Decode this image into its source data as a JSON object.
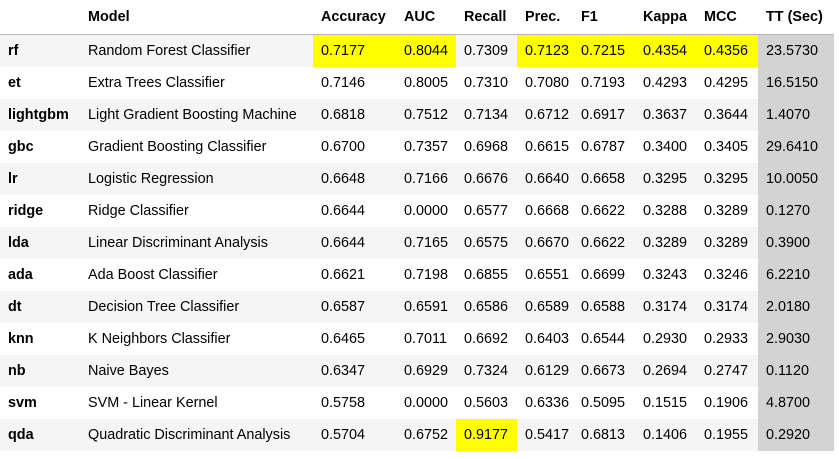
{
  "headers": [
    "",
    "Model",
    "Accuracy",
    "AUC",
    "Recall",
    "Prec.",
    "F1",
    "Kappa",
    "MCC",
    "TT (Sec)"
  ],
  "highlight_color": "#ffff00",
  "time_column_color": "#d3d3d3",
  "rows": [
    {
      "id": "rf",
      "model": "Random Forest Classifier",
      "values": [
        "0.7177",
        "0.8044",
        "0.7309",
        "0.7123",
        "0.7215",
        "0.4354",
        "0.4356",
        "23.5730"
      ],
      "highlight": [
        0,
        1,
        3,
        4,
        5,
        6
      ]
    },
    {
      "id": "et",
      "model": "Extra Trees Classifier",
      "values": [
        "0.7146",
        "0.8005",
        "0.7310",
        "0.7080",
        "0.7193",
        "0.4293",
        "0.4295",
        "16.5150"
      ],
      "highlight": []
    },
    {
      "id": "lightgbm",
      "model": "Light Gradient Boosting Machine",
      "values": [
        "0.6818",
        "0.7512",
        "0.7134",
        "0.6712",
        "0.6917",
        "0.3637",
        "0.3644",
        "1.4070"
      ],
      "highlight": []
    },
    {
      "id": "gbc",
      "model": "Gradient Boosting Classifier",
      "values": [
        "0.6700",
        "0.7357",
        "0.6968",
        "0.6615",
        "0.6787",
        "0.3400",
        "0.3405",
        "29.6410"
      ],
      "highlight": []
    },
    {
      "id": "lr",
      "model": "Logistic Regression",
      "values": [
        "0.6648",
        "0.7166",
        "0.6676",
        "0.6640",
        "0.6658",
        "0.3295",
        "0.3295",
        "10.0050"
      ],
      "highlight": []
    },
    {
      "id": "ridge",
      "model": "Ridge Classifier",
      "values": [
        "0.6644",
        "0.0000",
        "0.6577",
        "0.6668",
        "0.6622",
        "0.3288",
        "0.3289",
        "0.1270"
      ],
      "highlight": []
    },
    {
      "id": "lda",
      "model": "Linear Discriminant Analysis",
      "values": [
        "0.6644",
        "0.7165",
        "0.6575",
        "0.6670",
        "0.6622",
        "0.3289",
        "0.3289",
        "0.3900"
      ],
      "highlight": []
    },
    {
      "id": "ada",
      "model": "Ada Boost Classifier",
      "values": [
        "0.6621",
        "0.7198",
        "0.6855",
        "0.6551",
        "0.6699",
        "0.3243",
        "0.3246",
        "6.2210"
      ],
      "highlight": []
    },
    {
      "id": "dt",
      "model": "Decision Tree Classifier",
      "values": [
        "0.6587",
        "0.6591",
        "0.6586",
        "0.6589",
        "0.6588",
        "0.3174",
        "0.3174",
        "2.0180"
      ],
      "highlight": []
    },
    {
      "id": "knn",
      "model": "K Neighbors Classifier",
      "values": [
        "0.6465",
        "0.7011",
        "0.6692",
        "0.6403",
        "0.6544",
        "0.2930",
        "0.2933",
        "2.9030"
      ],
      "highlight": []
    },
    {
      "id": "nb",
      "model": "Naive Bayes",
      "values": [
        "0.6347",
        "0.6929",
        "0.7324",
        "0.6129",
        "0.6673",
        "0.2694",
        "0.2747",
        "0.1120"
      ],
      "highlight": []
    },
    {
      "id": "svm",
      "model": "SVM - Linear Kernel",
      "values": [
        "0.5758",
        "0.0000",
        "0.5603",
        "0.6336",
        "0.5095",
        "0.1515",
        "0.1906",
        "4.8700"
      ],
      "highlight": []
    },
    {
      "id": "qda",
      "model": "Quadratic Discriminant Analysis",
      "values": [
        "0.5704",
        "0.6752",
        "0.9177",
        "0.5417",
        "0.6813",
        "0.1406",
        "0.1955",
        "0.2920"
      ],
      "highlight": [
        2
      ]
    }
  ]
}
